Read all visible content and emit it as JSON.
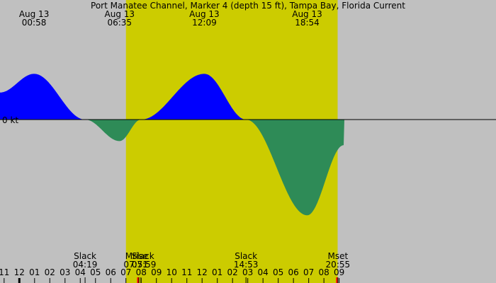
{
  "chart_data": {
    "type": "area",
    "title": "Port Manatee Channel, Marker 4 (depth 15 ft), Tampa Bay, Florida Current",
    "zero_label": "0 kt",
    "colors": {
      "background": "#c0c0c0",
      "daylight": "#cccc00",
      "flood": "#0000ff",
      "ebb": "#2e8b57",
      "moon_marker": "#ff0000"
    },
    "x_range_hours": [
      -1.27,
      31.3
    ],
    "y_range": [
      -1.9,
      1.0
    ],
    "daylight": {
      "start_hour": 7.0,
      "end_hour": 20.9
    },
    "x_ticks": [
      {
        "label": "11",
        "hour": -1
      },
      {
        "label": "12",
        "hour": 0
      },
      {
        "label": "01",
        "hour": 1
      },
      {
        "label": "02",
        "hour": 2
      },
      {
        "label": "03",
        "hour": 3
      },
      {
        "label": "04",
        "hour": 4
      },
      {
        "label": "05",
        "hour": 5
      },
      {
        "label": "06",
        "hour": 6
      },
      {
        "label": "07",
        "hour": 7
      },
      {
        "label": "08",
        "hour": 8
      },
      {
        "label": "09",
        "hour": 9
      },
      {
        "label": "10",
        "hour": 10
      },
      {
        "label": "11",
        "hour": 11
      },
      {
        "label": "12",
        "hour": 12
      },
      {
        "label": "01",
        "hour": 13
      },
      {
        "label": "02",
        "hour": 14
      },
      {
        "label": "03",
        "hour": 15
      },
      {
        "label": "04",
        "hour": 16
      },
      {
        "label": "05",
        "hour": 17
      },
      {
        "label": "06",
        "hour": 18
      },
      {
        "label": "07",
        "hour": 19
      },
      {
        "label": "08",
        "hour": 20
      },
      {
        "label": "09",
        "hour": 21
      }
    ],
    "max_labels": [
      {
        "date": "Aug 13",
        "time": "00:58",
        "hour": 0.967
      },
      {
        "date": "Aug 13",
        "time": "06:35",
        "hour": 6.583
      },
      {
        "date": "Aug 13",
        "time": "12:09",
        "hour": 12.15
      },
      {
        "date": "Aug 13",
        "time": "18:54",
        "hour": 18.9
      }
    ],
    "event_labels": [
      {
        "name": "Slack",
        "time": "04:19",
        "hour": 4.317,
        "marker": "slack"
      },
      {
        "name": "Mrise",
        "time": "07:51",
        "hour": 7.85,
        "marker": "moon"
      },
      {
        "name": "Slack",
        "time": "07:59",
        "hour": 7.983,
        "marker": "slack"
      },
      {
        "name": "Slack",
        "time": "14:53",
        "hour": 14.883,
        "marker": "slack"
      },
      {
        "name": "Mset",
        "time": "20:55",
        "hour": 20.917,
        "marker": "moon"
      }
    ],
    "series": [
      {
        "x": [
          -1.27,
          0.967,
          4.317,
          6.583,
          7.983,
          12.15,
          14.883,
          18.9,
          21.3
        ],
        "y": [
          0.55,
          0.93,
          0.0,
          -0.42,
          0.0,
          0.93,
          0.0,
          -1.87,
          -0.5
        ]
      }
    ]
  }
}
